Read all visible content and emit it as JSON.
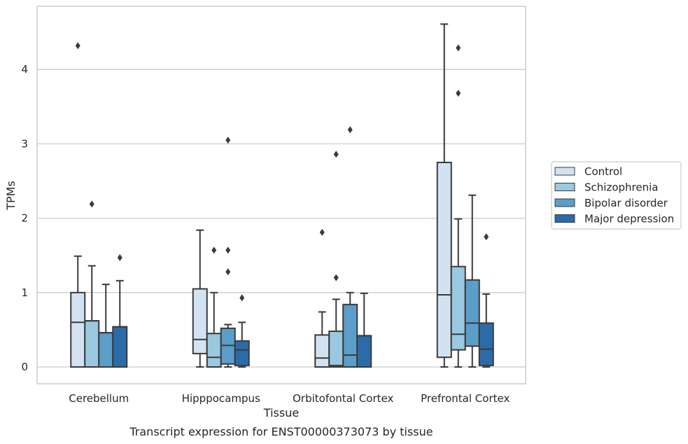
{
  "chart_data": {
    "type": "box",
    "title": "",
    "caption": "Transcript expression for ENST00000373073 by tissue",
    "xlabel": "Tissue",
    "ylabel": "TPMs",
    "ylim": [
      -0.22,
      4.82
    ],
    "yticks": [
      0,
      1,
      2,
      3,
      4
    ],
    "grid": "horizontal",
    "legend_position": "outside-right",
    "categories": [
      "Cerebellum",
      "Hipppocampus",
      "Orbitofontal Cortex",
      "Prefrontal Cortex"
    ],
    "series": [
      {
        "name": "Control",
        "color": "#d2e2f1",
        "boxes": [
          {
            "min": 0,
            "q1": 0,
            "median": 0.6,
            "q3": 1.0,
            "max": 1.49,
            "outliers": [
              4.32
            ]
          },
          {
            "min": 0,
            "q1": 0.18,
            "median": 0.37,
            "q3": 1.05,
            "max": 1.84,
            "outliers": []
          },
          {
            "min": 0,
            "q1": 0,
            "median": 0.12,
            "q3": 0.43,
            "max": 0.74,
            "outliers": [
              1.81
            ]
          },
          {
            "min": 0,
            "q1": 0.13,
            "median": 0.97,
            "q3": 2.75,
            "max": 4.61,
            "outliers": []
          }
        ]
      },
      {
        "name": "Schizophrenia",
        "color": "#9ac8e0",
        "boxes": [
          {
            "min": 0,
            "q1": 0,
            "median": 0.62,
            "q3": 0.62,
            "max": 1.36,
            "outliers": [
              2.19
            ]
          },
          {
            "min": 0,
            "q1": 0,
            "median": 0.13,
            "q3": 0.45,
            "max": 1.0,
            "outliers": [
              1.57
            ]
          },
          {
            "min": 0,
            "q1": 0,
            "median": 0.02,
            "q3": 0.48,
            "max": 0.91,
            "outliers": [
              1.2,
              2.86
            ]
          },
          {
            "min": 0,
            "q1": 0.23,
            "median": 0.44,
            "q3": 1.35,
            "max": 1.99,
            "outliers": [
              3.68,
              4.29
            ]
          }
        ]
      },
      {
        "name": "Bipolar disorder",
        "color": "#5a9ec9",
        "boxes": [
          {
            "min": 0,
            "q1": 0,
            "median": 0.46,
            "q3": 0.46,
            "max": 1.11,
            "outliers": []
          },
          {
            "min": 0,
            "q1": 0.04,
            "median": 0.29,
            "q3": 0.52,
            "max": 0.57,
            "outliers": [
              1.28,
              1.57,
              3.05
            ]
          },
          {
            "min": 0,
            "q1": 0,
            "median": 0.16,
            "q3": 0.84,
            "max": 1.0,
            "outliers": [
              3.19
            ]
          },
          {
            "min": 0,
            "q1": 0.28,
            "median": 0.59,
            "q3": 1.17,
            "max": 2.31,
            "outliers": []
          }
        ]
      },
      {
        "name": "Major depression",
        "color": "#2b6ca8",
        "boxes": [
          {
            "min": 0,
            "q1": 0,
            "median": 0.54,
            "q3": 0.54,
            "max": 1.16,
            "outliers": [
              1.47
            ]
          },
          {
            "min": 0,
            "q1": 0.02,
            "median": 0.23,
            "q3": 0.35,
            "max": 0.6,
            "outliers": [
              0.93
            ]
          },
          {
            "min": 0,
            "q1": 0,
            "median": 0.42,
            "q3": 0.42,
            "max": 0.99,
            "outliers": []
          },
          {
            "min": 0,
            "q1": 0.02,
            "median": 0.24,
            "q3": 0.59,
            "max": 0.98,
            "outliers": [
              1.75
            ]
          }
        ]
      }
    ]
  }
}
